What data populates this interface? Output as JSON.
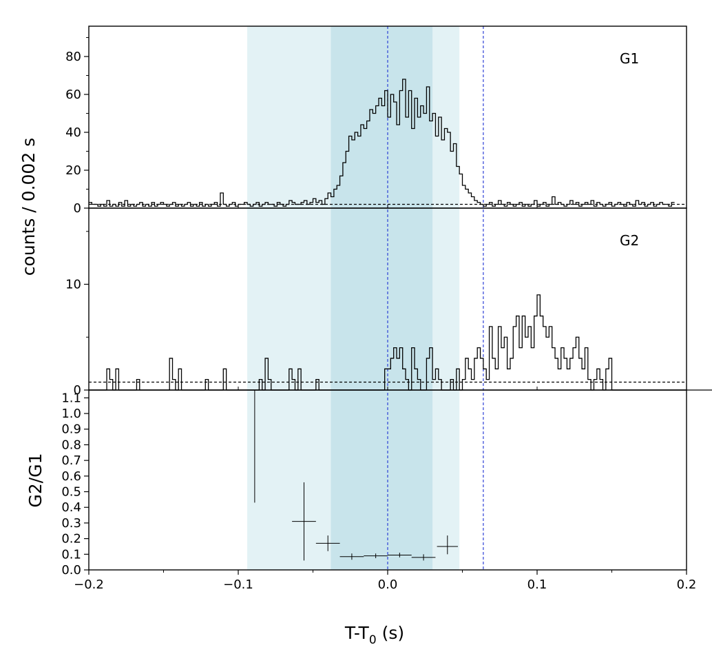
{
  "chart_data": {
    "type": "line",
    "x_axis": {
      "label": "T-T",
      "label_subscript": "0",
      "label_suffix": " (s)",
      "lim": [
        -0.2,
        0.2
      ],
      "ticks": [
        -0.2,
        -0.1,
        0.0,
        0.1,
        0.2
      ],
      "tick_labels": [
        "−0.2",
        "−0.1",
        "0.0",
        "0.1",
        "0.2"
      ]
    },
    "shared_ylabel": "counts /  0.002 s",
    "bin_width": 0.002,
    "shaded_regions": [
      {
        "x": [
          -0.094,
          0.048
        ],
        "color": "#e3f2f5"
      },
      {
        "x": [
          -0.038,
          0.03
        ],
        "color": "#c8e4eb"
      }
    ],
    "vertical_lines": [
      {
        "x": 0.0,
        "color": "#2b3fd6",
        "style": "dashed"
      },
      {
        "x": 0.064,
        "color": "#2b3fd6",
        "style": "dashed"
      }
    ],
    "panels": [
      {
        "name": "G1",
        "label": "G1",
        "type": "step",
        "ylim": [
          0,
          96
        ],
        "yticks": [
          0,
          20,
          40,
          60,
          80
        ],
        "ytick_labels": [
          "0",
          "20",
          "40",
          "60",
          "80"
        ],
        "minor_step": 10,
        "background_level": 2,
        "x_start": -0.2,
        "counts": [
          3,
          2,
          2,
          1,
          2,
          1,
          4,
          1,
          2,
          1,
          3,
          1,
          4,
          1,
          2,
          1,
          2,
          3,
          1,
          2,
          1,
          3,
          1,
          2,
          3,
          2,
          1,
          2,
          3,
          1,
          2,
          1,
          2,
          3,
          1,
          2,
          1,
          3,
          1,
          2,
          1,
          2,
          3,
          1,
          8,
          2,
          1,
          2,
          3,
          1,
          2,
          2,
          3,
          2,
          1,
          2,
          3,
          1,
          2,
          3,
          2,
          2,
          1,
          3,
          2,
          1,
          2,
          4,
          3,
          2,
          2,
          3,
          4,
          2,
          3,
          5,
          3,
          4,
          2,
          5,
          8,
          6,
          10,
          12,
          17,
          24,
          30,
          38,
          36,
          40,
          38,
          44,
          42,
          46,
          52,
          50,
          54,
          58,
          54,
          62,
          48,
          60,
          56,
          44,
          62,
          68,
          48,
          62,
          42,
          58,
          48,
          54,
          50,
          64,
          46,
          50,
          38,
          48,
          36,
          42,
          40,
          30,
          34,
          22,
          18,
          12,
          10,
          8,
          6,
          4,
          3,
          2,
          1,
          2,
          3,
          1,
          2,
          4,
          2,
          1,
          3,
          2,
          1,
          2,
          3,
          1,
          2,
          1,
          2,
          4,
          1,
          2,
          3,
          1,
          2,
          6,
          2,
          3,
          2,
          1,
          2,
          4,
          2,
          3,
          1,
          2,
          3,
          2,
          4,
          1,
          3,
          2,
          1,
          2,
          3,
          1,
          2,
          3,
          2,
          1,
          3,
          2,
          1,
          4,
          2,
          3,
          1,
          2,
          3,
          1,
          2,
          3,
          2,
          2,
          1,
          3
        ]
      },
      {
        "name": "G2",
        "label": "G2",
        "type": "step",
        "ylim": [
          0,
          17.2
        ],
        "yticks": [
          0,
          10
        ],
        "ytick_labels": [
          "0",
          "10"
        ],
        "minor_step": 5,
        "background_level": 0.75,
        "x_start": -0.2,
        "counts": [
          0,
          0,
          0,
          0,
          0,
          0,
          2,
          1,
          0,
          2,
          0,
          0,
          0,
          0,
          0,
          0,
          1,
          0,
          0,
          0,
          0,
          0,
          0,
          0,
          0,
          0,
          0,
          3,
          1,
          0,
          2,
          0,
          0,
          0,
          0,
          0,
          0,
          0,
          0,
          1,
          0,
          0,
          0,
          0,
          0,
          2,
          0,
          0,
          0,
          0,
          0,
          0,
          0,
          0,
          0,
          0,
          0,
          1,
          0,
          3,
          1,
          0,
          0,
          0,
          0,
          0,
          0,
          2,
          1,
          0,
          2,
          0,
          0,
          0,
          0,
          0,
          1,
          0,
          0,
          0,
          0,
          0,
          0,
          0,
          0,
          0,
          0,
          0,
          0,
          0,
          0,
          0,
          0,
          0,
          0,
          0,
          0,
          0,
          0,
          2,
          2,
          3,
          4,
          3,
          4,
          2,
          1,
          0,
          4,
          2,
          1,
          0,
          0,
          3,
          4,
          1,
          2,
          1,
          0,
          0,
          0,
          1,
          0,
          2,
          0,
          1,
          3,
          2,
          1,
          3,
          4,
          3,
          2,
          1,
          6,
          3,
          2,
          6,
          4,
          5,
          2,
          3,
          6,
          7,
          4,
          7,
          5,
          6,
          4,
          7,
          9,
          7,
          6,
          5,
          6,
          4,
          3,
          2,
          4,
          3,
          2,
          3,
          4,
          5,
          3,
          2,
          4,
          1,
          0,
          1,
          2,
          1,
          0,
          2,
          3,
          0,
          0,
          0,
          0,
          0,
          0,
          0,
          0,
          0,
          0,
          0,
          0,
          0,
          0,
          0,
          0,
          0,
          0,
          0,
          0,
          0,
          0,
          0,
          0,
          0,
          0,
          0,
          0,
          0,
          0,
          0,
          0,
          0,
          0,
          0,
          0,
          0,
          0,
          0,
          0,
          0,
          0,
          0,
          0,
          0,
          0,
          0,
          0
        ]
      },
      {
        "name": "ratio",
        "label": "",
        "ylabel": "G2/G1",
        "type": "errorbar",
        "ylim": [
          0,
          1.15
        ],
        "yticks": [
          0,
          0.1,
          0.2,
          0.3,
          0.4,
          0.5,
          0.6,
          0.7,
          0.8,
          0.9,
          1.0,
          1.1
        ],
        "ytick_labels": [
          "0.0",
          "0.1",
          "0.2",
          "0.3",
          "0.4",
          "0.5",
          "0.6",
          "0.7",
          "0.8",
          "0.9",
          "1.0",
          "1.1"
        ],
        "points": [
          {
            "x": -0.089,
            "xerr": 0.0,
            "y": 0.79,
            "ylo": 0.43,
            "yhi": 1.15
          },
          {
            "x": -0.056,
            "xerr": 0.008,
            "y": 0.31,
            "ylo": 0.06,
            "yhi": 0.56
          },
          {
            "x": -0.04,
            "xerr": 0.008,
            "y": 0.17,
            "ylo": 0.12,
            "yhi": 0.22
          },
          {
            "x": -0.024,
            "xerr": 0.008,
            "y": 0.085,
            "ylo": 0.065,
            "yhi": 0.105
          },
          {
            "x": -0.008,
            "xerr": 0.008,
            "y": 0.09,
            "ylo": 0.075,
            "yhi": 0.105
          },
          {
            "x": 0.008,
            "xerr": 0.008,
            "y": 0.095,
            "ylo": 0.08,
            "yhi": 0.11
          },
          {
            "x": 0.024,
            "xerr": 0.008,
            "y": 0.08,
            "ylo": 0.06,
            "yhi": 0.1
          },
          {
            "x": 0.04,
            "xerr": 0.007,
            "y": 0.15,
            "ylo": 0.1,
            "yhi": 0.22
          }
        ]
      }
    ]
  }
}
